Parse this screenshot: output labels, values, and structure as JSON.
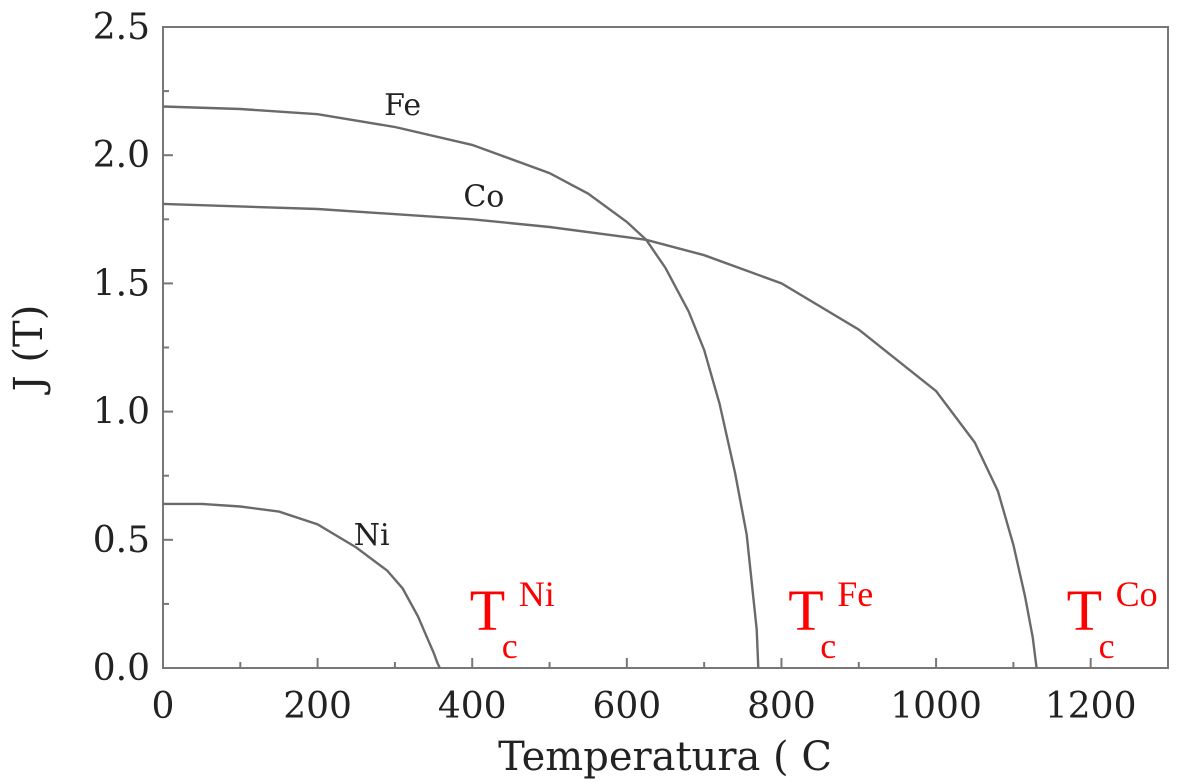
{
  "chart_data": {
    "type": "line",
    "xlabel": "Temperatura ( C",
    "ylabel": "J (T)",
    "xlim": [
      0,
      1300
    ],
    "ylim": [
      0,
      2.5
    ],
    "x_ticks": [
      "0",
      "200",
      "400",
      "600",
      "800",
      "1000",
      "1200"
    ],
    "y_ticks": [
      "0.0",
      "0.5",
      "1.0",
      "1.5",
      "2.0",
      "2.5"
    ],
    "grid": false,
    "series": [
      {
        "name": "Fe",
        "color": "#6a6a6a",
        "x": [
          0,
          100,
          200,
          300,
          400,
          500,
          550,
          600,
          625,
          650,
          680,
          700,
          720,
          740,
          755,
          768,
          770
        ],
        "y": [
          2.19,
          2.18,
          2.16,
          2.11,
          2.04,
          1.93,
          1.85,
          1.74,
          1.67,
          1.56,
          1.39,
          1.24,
          1.03,
          0.76,
          0.52,
          0.15,
          0.0
        ]
      },
      {
        "name": "Co",
        "color": "#6a6a6a",
        "x": [
          0,
          200,
          400,
          500,
          600,
          625,
          700,
          800,
          900,
          1000,
          1050,
          1080,
          1100,
          1115,
          1125,
          1130
        ],
        "y": [
          1.81,
          1.79,
          1.75,
          1.72,
          1.68,
          1.67,
          1.61,
          1.5,
          1.32,
          1.08,
          0.88,
          0.69,
          0.48,
          0.28,
          0.12,
          0.0
        ]
      },
      {
        "name": "Ni",
        "color": "#6a6a6a",
        "x": [
          0,
          50,
          100,
          150,
          200,
          250,
          290,
          310,
          330,
          340,
          350,
          355,
          358
        ],
        "y": [
          0.64,
          0.64,
          0.63,
          0.61,
          0.56,
          0.47,
          0.38,
          0.31,
          0.2,
          0.13,
          0.06,
          0.02,
          0.0
        ]
      }
    ],
    "annotations": [
      {
        "name": "Ni",
        "label": "T",
        "subscript": "c",
        "superscript": "Ni",
        "color": "#ff0000"
      },
      {
        "name": "Fe",
        "label": "T",
        "subscript": "c",
        "superscript": "Fe",
        "color": "#ff0000"
      },
      {
        "name": "Co",
        "label": "T",
        "subscript": "c",
        "superscript": "Co",
        "color": "#ff0000"
      }
    ]
  }
}
